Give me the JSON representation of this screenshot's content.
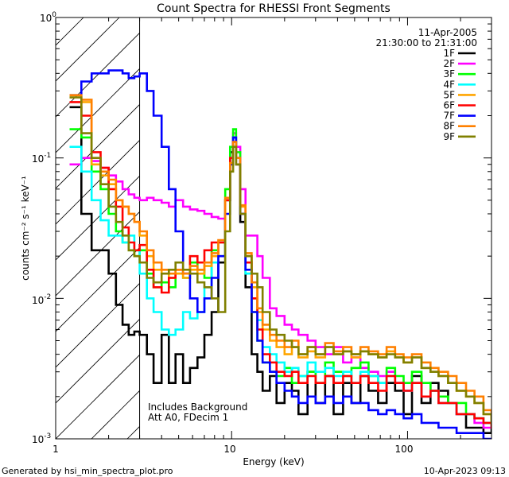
{
  "chart_data": {
    "type": "line",
    "title": "Count Spectra for RHESSI Front Segments",
    "xlabel": "Energy (keV)",
    "ylabel": "counts cm⁻² s⁻¹ keV⁻¹",
    "xscale": "log",
    "yscale": "log",
    "xlim": [
      1,
      300
    ],
    "ylim": [
      0.001,
      1.0
    ],
    "x_ticks": [
      {
        "value": 1,
        "label": "1"
      },
      {
        "value": 10,
        "label": "10"
      },
      {
        "value": 100,
        "label": "100"
      }
    ],
    "y_ticks": [
      {
        "value": 1.0,
        "mant": "10",
        "exp": "0"
      },
      {
        "value": 0.1,
        "mant": "10",
        "exp": "-1"
      },
      {
        "value": 0.01,
        "mant": "10",
        "exp": "-2"
      },
      {
        "value": 0.001,
        "mant": "10",
        "exp": "-3"
      }
    ],
    "date": "11-Apr-2005",
    "time_range": "21:30:00 to 21:31:00",
    "annotation_lines": [
      "Includes Background",
      "Att A0, FDecim 1"
    ],
    "shaded_region_xmax": 3.0,
    "energy_bins": [
      1.2,
      1.4,
      1.6,
      1.8,
      2.0,
      2.2,
      2.4,
      2.6,
      2.8,
      3.0,
      3.3,
      3.6,
      4.0,
      4.4,
      4.8,
      5.3,
      5.8,
      6.4,
      7.0,
      7.7,
      8.4,
      9.2,
      9.8,
      10.2,
      10.6,
      11.2,
      12,
      13,
      14,
      15,
      16.5,
      18,
      20,
      22,
      24,
      27,
      30,
      34,
      38,
      43,
      48,
      54,
      60,
      68,
      76,
      85,
      95,
      106,
      120,
      135,
      150,
      170,
      190,
      215,
      240,
      270,
      300
    ],
    "series": [
      {
        "name": "1F",
        "color": "#000000",
        "values": [
          0.23,
          0.04,
          0.022,
          0.022,
          0.015,
          0.009,
          0.0065,
          0.0055,
          0.0058,
          0.0055,
          0.004,
          0.0025,
          0.0055,
          0.0025,
          0.004,
          0.0025,
          0.0032,
          0.0038,
          0.0055,
          0.008,
          0.018,
          0.05,
          0.11,
          0.14,
          0.09,
          0.035,
          0.012,
          0.004,
          0.003,
          0.0022,
          0.0028,
          0.0018,
          0.0025,
          0.0022,
          0.0015,
          0.003,
          0.0018,
          0.0028,
          0.0015,
          0.0025,
          0.0018,
          0.0028,
          0.0022,
          0.0018,
          0.0025,
          0.0022,
          0.0015,
          0.0028,
          0.0018,
          0.0025,
          0.0022,
          0.0018,
          0.0015,
          0.0012,
          0.0012,
          0.0011,
          0.0012
        ]
      },
      {
        "name": "2F",
        "color": "#ff00ff",
        "values": [
          0.09,
          0.1,
          0.095,
          0.085,
          0.075,
          0.068,
          0.06,
          0.055,
          0.052,
          0.05,
          0.052,
          0.05,
          0.048,
          0.045,
          0.05,
          0.045,
          0.043,
          0.042,
          0.04,
          0.038,
          0.037,
          0.05,
          0.1,
          0.15,
          0.12,
          0.06,
          0.028,
          0.028,
          0.02,
          0.014,
          0.0085,
          0.0075,
          0.0065,
          0.006,
          0.0055,
          0.005,
          0.0045,
          0.004,
          0.0045,
          0.0035,
          0.0038,
          0.0032,
          0.003,
          0.0028,
          0.003,
          0.0025,
          0.0022,
          0.0025,
          0.002,
          0.0022,
          0.0018,
          0.0018,
          0.0015,
          0.0015,
          0.0013,
          0.0012,
          0.0012
        ]
      },
      {
        "name": "3F",
        "color": "#00ff00",
        "values": [
          0.16,
          0.14,
          0.08,
          0.06,
          0.04,
          0.03,
          0.025,
          0.022,
          0.02,
          0.022,
          0.015,
          0.012,
          0.013,
          0.012,
          0.015,
          0.014,
          0.018,
          0.016,
          0.014,
          0.022,
          0.02,
          0.06,
          0.12,
          0.16,
          0.11,
          0.04,
          0.015,
          0.008,
          0.005,
          0.0035,
          0.003,
          0.0028,
          0.0032,
          0.0025,
          0.0028,
          0.003,
          0.0025,
          0.0035,
          0.003,
          0.0028,
          0.0032,
          0.0035,
          0.0028,
          0.0025,
          0.0032,
          0.0028,
          0.0025,
          0.003,
          0.0025,
          0.0022,
          0.002,
          0.0018,
          0.0018,
          0.0015,
          0.0014,
          0.0013,
          0.0012
        ]
      },
      {
        "name": "4F",
        "color": "#00ffff",
        "values": [
          0.12,
          0.08,
          0.05,
          0.036,
          0.028,
          0.028,
          0.025,
          0.028,
          0.022,
          0.015,
          0.01,
          0.008,
          0.006,
          0.0055,
          0.006,
          0.008,
          0.0072,
          0.008,
          0.012,
          0.018,
          0.025,
          0.05,
          0.1,
          0.14,
          0.09,
          0.04,
          0.015,
          0.01,
          0.007,
          0.0045,
          0.004,
          0.0035,
          0.003,
          0.0032,
          0.0028,
          0.0035,
          0.003,
          0.0032,
          0.0028,
          0.003,
          0.0025,
          0.003,
          0.0028,
          0.0025,
          0.0028,
          0.0025,
          0.0022,
          0.0025,
          0.002,
          0.0022,
          0.0018,
          0.0018,
          0.0015,
          0.0015,
          0.0014,
          0.0013,
          0.0012
        ]
      },
      {
        "name": "5F",
        "color": "#ffa500",
        "values": [
          0.27,
          0.25,
          0.09,
          0.075,
          0.065,
          0.05,
          0.045,
          0.04,
          0.035,
          0.028,
          0.02,
          0.016,
          0.015,
          0.014,
          0.015,
          0.014,
          0.016,
          0.015,
          0.017,
          0.02,
          0.025,
          0.05,
          0.09,
          0.13,
          0.1,
          0.045,
          0.02,
          0.012,
          0.008,
          0.006,
          0.005,
          0.0045,
          0.004,
          0.0045,
          0.0038,
          0.0042,
          0.0038,
          0.0045,
          0.004,
          0.0042,
          0.0038,
          0.0042,
          0.004,
          0.0038,
          0.0042,
          0.0038,
          0.0035,
          0.0038,
          0.0032,
          0.003,
          0.0028,
          0.0025,
          0.0022,
          0.002,
          0.0018,
          0.0015,
          0.0013
        ]
      },
      {
        "name": "6F",
        "color": "#ff0000",
        "values": [
          0.25,
          0.2,
          0.11,
          0.085,
          0.06,
          0.045,
          0.032,
          0.025,
          0.022,
          0.024,
          0.016,
          0.012,
          0.011,
          0.014,
          0.016,
          0.015,
          0.02,
          0.018,
          0.022,
          0.025,
          0.025,
          0.05,
          0.1,
          0.13,
          0.09,
          0.04,
          0.018,
          0.01,
          0.006,
          0.004,
          0.0035,
          0.003,
          0.0028,
          0.003,
          0.0025,
          0.0028,
          0.0025,
          0.0028,
          0.0025,
          0.0028,
          0.0025,
          0.0028,
          0.0025,
          0.0022,
          0.0028,
          0.0025,
          0.0022,
          0.0025,
          0.002,
          0.0022,
          0.0018,
          0.0018,
          0.0015,
          0.0015,
          0.0014,
          0.0013,
          0.0012
        ]
      },
      {
        "name": "7F",
        "color": "#0000ff",
        "values": [
          0.28,
          0.35,
          0.4,
          0.4,
          0.42,
          0.42,
          0.4,
          0.37,
          0.38,
          0.4,
          0.3,
          0.2,
          0.12,
          0.06,
          0.03,
          0.015,
          0.01,
          0.008,
          0.01,
          0.014,
          0.02,
          0.04,
          0.09,
          0.14,
          0.1,
          0.04,
          0.016,
          0.008,
          0.005,
          0.0035,
          0.003,
          0.0025,
          0.0022,
          0.002,
          0.0018,
          0.002,
          0.0018,
          0.002,
          0.0018,
          0.002,
          0.0018,
          0.0018,
          0.0016,
          0.0015,
          0.0016,
          0.0015,
          0.0014,
          0.0015,
          0.0013,
          0.0013,
          0.0012,
          0.0012,
          0.0011,
          0.0011,
          0.0011,
          0.001,
          0.001
        ]
      },
      {
        "name": "8F",
        "color": "#ff8000",
        "values": [
          0.28,
          0.26,
          0.1,
          0.08,
          0.07,
          0.05,
          0.045,
          0.04,
          0.035,
          0.03,
          0.022,
          0.018,
          0.016,
          0.015,
          0.016,
          0.015,
          0.017,
          0.016,
          0.018,
          0.021,
          0.026,
          0.052,
          0.092,
          0.13,
          0.1,
          0.046,
          0.021,
          0.013,
          0.0085,
          0.0065,
          0.0055,
          0.005,
          0.0045,
          0.005,
          0.004,
          0.0045,
          0.004,
          0.0048,
          0.0042,
          0.0045,
          0.004,
          0.0045,
          0.0042,
          0.004,
          0.0045,
          0.004,
          0.0038,
          0.004,
          0.0035,
          0.0032,
          0.003,
          0.0028,
          0.0025,
          0.0022,
          0.002,
          0.0016,
          0.0014
        ]
      },
      {
        "name": "9F",
        "color": "#808000",
        "values": [
          0.27,
          0.15,
          0.1,
          0.065,
          0.045,
          0.035,
          0.028,
          0.022,
          0.02,
          0.018,
          0.014,
          0.013,
          0.015,
          0.016,
          0.018,
          0.016,
          0.015,
          0.013,
          0.012,
          0.01,
          0.008,
          0.03,
          0.08,
          0.12,
          0.09,
          0.04,
          0.02,
          0.015,
          0.012,
          0.008,
          0.006,
          0.0055,
          0.005,
          0.0045,
          0.004,
          0.0045,
          0.004,
          0.0045,
          0.004,
          0.0042,
          0.004,
          0.0042,
          0.004,
          0.0038,
          0.004,
          0.0038,
          0.0035,
          0.0038,
          0.0032,
          0.003,
          0.0028,
          0.0025,
          0.0022,
          0.002,
          0.0018,
          0.0015,
          0.0013
        ]
      }
    ]
  },
  "footer": {
    "left": "Generated by hsi_min_spectra_plot.pro",
    "right": "10-Apr-2023 09:13"
  }
}
